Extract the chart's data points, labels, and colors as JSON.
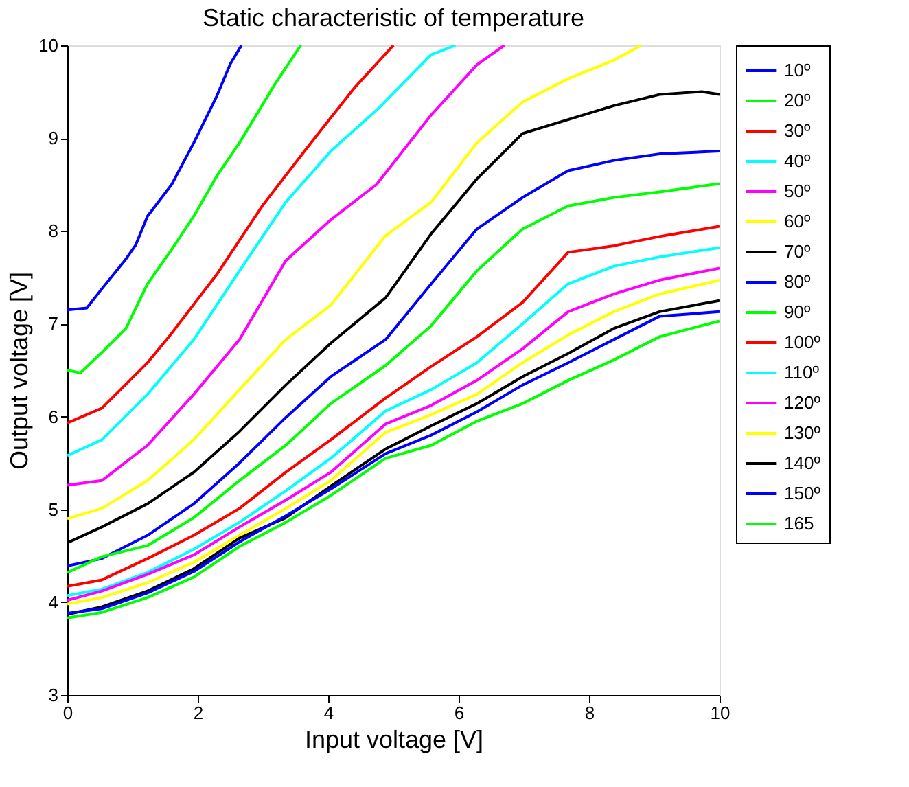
{
  "chart_data": {
    "type": "line",
    "title": "Static characteristic of temperature",
    "xlabel": "Input voltage [V]",
    "ylabel": "Output voltage [V]",
    "xlim": [
      0,
      10
    ],
    "ylim": [
      3,
      10
    ],
    "xticks": [
      0,
      2,
      4,
      6,
      8,
      10
    ],
    "yticks": [
      3,
      4,
      5,
      6,
      7,
      8,
      9,
      10
    ],
    "grid": false,
    "legend": "top right",
    "marker": "none",
    "line_style": "solid",
    "series": [
      {
        "name": "10º",
        "color": "#0000ff",
        "x": [
          0,
          0.3,
          0.5,
          0.88,
          1.05,
          1.23,
          1.6,
          1.94,
          2.29,
          2.5,
          2.67
        ],
        "values": [
          7.15,
          7.17,
          7.35,
          7.68,
          7.85,
          8.16,
          8.5,
          8.95,
          9.45,
          9.8,
          10
        ]
      },
      {
        "name": "20º",
        "color": "#00ff00",
        "x": [
          0,
          0.2,
          0.53,
          0.9,
          1.23,
          1.6,
          1.94,
          2.3,
          2.64,
          3.2,
          3.58
        ],
        "values": [
          6.5,
          6.47,
          6.69,
          6.95,
          7.43,
          7.8,
          8.16,
          8.6,
          8.95,
          9.6,
          10
        ]
      },
      {
        "name": "30º",
        "color": "#ff0000",
        "x": [
          0,
          0.53,
          1.23,
          1.58,
          2.29,
          2.99,
          3.68,
          4.4,
          5.0
        ],
        "values": [
          5.93,
          6.09,
          6.58,
          6.88,
          7.53,
          8.27,
          8.9,
          9.54,
          10
        ]
      },
      {
        "name": "40º",
        "color": "#00ffff",
        "x": [
          0,
          0.53,
          1.23,
          1.94,
          2.64,
          3.35,
          4.04,
          4.74,
          5.58,
          5.95
        ],
        "values": [
          5.58,
          5.75,
          6.24,
          6.83,
          7.57,
          8.31,
          8.86,
          9.3,
          9.9,
          10
        ]
      },
      {
        "name": "50º",
        "color": "#ff00ff",
        "x": [
          0,
          0.53,
          1.23,
          1.94,
          2.64,
          3.35,
          4.04,
          4.74,
          5.58,
          6.28,
          6.7
        ],
        "values": [
          5.26,
          5.31,
          5.69,
          6.24,
          6.83,
          7.68,
          8.12,
          8.5,
          9.25,
          9.79,
          10
        ]
      },
      {
        "name": "60º",
        "color": "#ffff00",
        "x": [
          0,
          0.53,
          1.23,
          1.94,
          2.64,
          3.35,
          4.04,
          4.88,
          5.58,
          6.28,
          6.98,
          7.68,
          8.38,
          8.8
        ],
        "values": [
          4.9,
          5.01,
          5.31,
          5.75,
          6.29,
          6.83,
          7.2,
          7.95,
          8.31,
          8.95,
          9.39,
          9.64,
          9.84,
          10
        ]
      },
      {
        "name": "70º",
        "color": "#000000",
        "x": [
          0,
          0.53,
          1.23,
          1.94,
          2.64,
          3.35,
          4.04,
          4.88,
          5.58,
          6.28,
          6.98,
          7.68,
          8.38,
          9.08,
          9.73,
          10
        ],
        "values": [
          4.64,
          4.81,
          5.06,
          5.4,
          5.84,
          6.34,
          6.79,
          7.28,
          7.97,
          8.56,
          9.05,
          9.2,
          9.35,
          9.47,
          9.5,
          9.47
        ]
      },
      {
        "name": "80º",
        "color": "#0000ff",
        "x": [
          0,
          0.53,
          1.23,
          1.94,
          2.64,
          3.35,
          4.04,
          4.88,
          5.58,
          6.28,
          6.98,
          7.68,
          8.38,
          9.08,
          10
        ],
        "values": [
          4.39,
          4.47,
          4.72,
          5.06,
          5.5,
          5.99,
          6.43,
          6.83,
          7.43,
          8.02,
          8.36,
          8.65,
          8.76,
          8.83,
          8.86
        ]
      },
      {
        "name": "90º",
        "color": "#00ff00",
        "x": [
          0,
          0.53,
          1.23,
          1.94,
          2.64,
          3.35,
          4.04,
          4.88,
          5.58,
          6.28,
          6.98,
          7.68,
          8.38,
          9.08,
          10
        ],
        "values": [
          4.32,
          4.49,
          4.61,
          4.91,
          5.31,
          5.69,
          6.14,
          6.55,
          6.98,
          7.57,
          8.02,
          8.27,
          8.36,
          8.42,
          8.51
        ]
      },
      {
        "name": "100º",
        "color": "#ff0000",
        "x": [
          0,
          0.53,
          1.23,
          1.94,
          2.64,
          3.35,
          4.04,
          4.88,
          5.58,
          6.28,
          6.98,
          7.68,
          8.38,
          9.08,
          10
        ],
        "values": [
          4.17,
          4.24,
          4.47,
          4.72,
          5.01,
          5.4,
          5.75,
          6.2,
          6.54,
          6.86,
          7.23,
          7.77,
          7.84,
          7.94,
          8.05
        ]
      },
      {
        "name": "110º",
        "color": "#00ffff",
        "x": [
          0,
          0.53,
          1.23,
          1.94,
          2.64,
          3.35,
          4.04,
          4.88,
          5.58,
          6.28,
          6.98,
          7.68,
          8.38,
          9.08,
          10
        ],
        "values": [
          4.07,
          4.14,
          4.32,
          4.57,
          4.86,
          5.2,
          5.55,
          6.06,
          6.29,
          6.58,
          7.0,
          7.43,
          7.62,
          7.72,
          7.82
        ]
      },
      {
        "name": "120º",
        "color": "#ff00ff",
        "x": [
          0,
          0.53,
          1.23,
          1.94,
          2.64,
          3.35,
          4.04,
          4.88,
          5.58,
          6.28,
          6.98,
          7.68,
          8.38,
          9.08,
          10
        ],
        "values": [
          4.02,
          4.12,
          4.3,
          4.51,
          4.81,
          5.1,
          5.4,
          5.92,
          6.12,
          6.39,
          6.73,
          7.13,
          7.32,
          7.47,
          7.6
        ]
      },
      {
        "name": "130º",
        "color": "#ffff00",
        "x": [
          0,
          0.53,
          1.23,
          1.94,
          2.64,
          3.35,
          4.04,
          4.88,
          5.58,
          6.28,
          6.98,
          7.68,
          8.38,
          9.08,
          10
        ],
        "values": [
          3.98,
          4.05,
          4.21,
          4.43,
          4.72,
          5.01,
          5.31,
          5.83,
          6.02,
          6.24,
          6.58,
          6.88,
          7.13,
          7.32,
          7.47
        ]
      },
      {
        "name": "140º",
        "color": "#000000",
        "x": [
          0,
          0.53,
          1.23,
          1.94,
          2.64,
          3.35,
          4.04,
          4.88,
          5.58,
          6.28,
          6.98,
          7.68,
          8.38,
          9.08,
          10
        ],
        "values": [
          3.87,
          3.95,
          4.12,
          4.36,
          4.69,
          4.91,
          5.25,
          5.65,
          5.9,
          6.14,
          6.43,
          6.68,
          6.95,
          7.13,
          7.25
        ]
      },
      {
        "name": "150º",
        "color": "#0000ff",
        "x": [
          0,
          0.53,
          1.23,
          1.94,
          2.64,
          3.35,
          4.04,
          4.88,
          5.58,
          6.28,
          6.98,
          7.68,
          8.38,
          9.08,
          10
        ],
        "values": [
          3.88,
          3.93,
          4.1,
          4.33,
          4.65,
          4.93,
          5.22,
          5.6,
          5.8,
          6.05,
          6.34,
          6.58,
          6.83,
          7.08,
          7.13
        ]
      },
      {
        "name": "165",
        "color": "#00ff00",
        "x": [
          0,
          0.53,
          1.23,
          1.94,
          2.64,
          3.35,
          4.04,
          4.88,
          5.58,
          6.28,
          6.98,
          7.68,
          8.38,
          9.08,
          10
        ],
        "values": [
          3.83,
          3.89,
          4.05,
          4.27,
          4.6,
          4.86,
          5.15,
          5.55,
          5.69,
          5.95,
          6.14,
          6.39,
          6.61,
          6.86,
          7.03
        ]
      }
    ]
  }
}
